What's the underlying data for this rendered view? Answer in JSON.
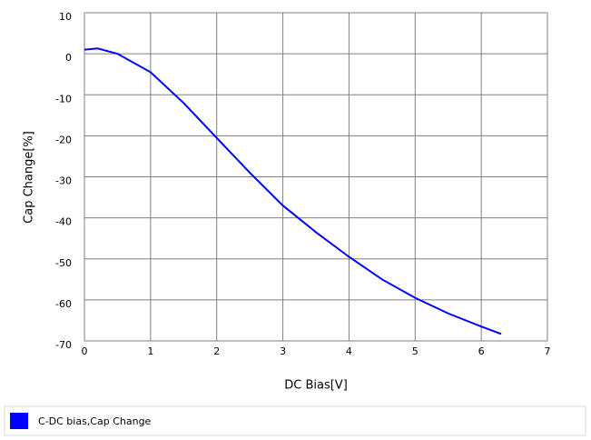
{
  "chart_data": {
    "type": "line",
    "x_label": "DC Bias[V]",
    "y_label": "Cap Change[%]",
    "xlim": [
      0,
      7
    ],
    "xticks": [
      0,
      1,
      2,
      3,
      4,
      5,
      6,
      7
    ],
    "ylim": [
      -70,
      10
    ],
    "yticks": [
      10,
      0,
      -10,
      -20,
      -30,
      -40,
      -50,
      -60,
      -70
    ],
    "grid": true,
    "legend": "bottom",
    "series": [
      {
        "name": "C-DC bias,Cap Change",
        "color": "#0000ff",
        "x": [
          0,
          0.2,
          0.5,
          1,
          1.5,
          2,
          2.5,
          3,
          3.5,
          4,
          4.5,
          5,
          5.5,
          6,
          6.3
        ],
        "values": [
          1,
          1.3,
          0,
          -4.5,
          -12,
          -20.5,
          -29,
          -37,
          -43.5,
          -49.5,
          -55,
          -59.5,
          -63.3,
          -66.5,
          -68.3
        ]
      }
    ]
  }
}
